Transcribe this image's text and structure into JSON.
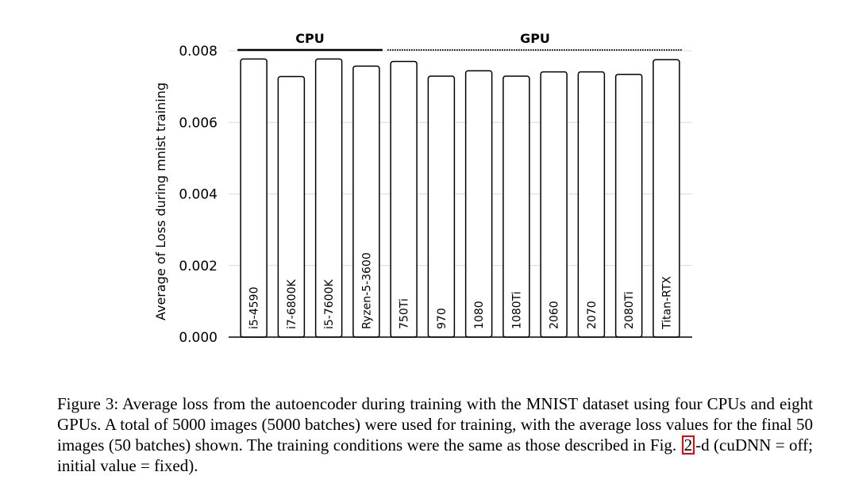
{
  "chart_data": {
    "type": "bar",
    "categories": [
      "i5-4590",
      "i7-6800K",
      "i5-7600K",
      "Ryzen-5-3600",
      "750Ti",
      "970",
      "1080",
      "1080Ti",
      "2060",
      "2070",
      "2080Ti",
      "Titan-RTX"
    ],
    "values": [
      0.00777,
      0.00728,
      0.00777,
      0.00757,
      0.0077,
      0.00729,
      0.00744,
      0.00729,
      0.00741,
      0.00741,
      0.00734,
      0.00775
    ],
    "ylabel": "Average of Loss during mnist training",
    "ylim": [
      0,
      0.008
    ],
    "yticks": [
      "0.000",
      "0.002",
      "0.004",
      "0.006",
      "0.008"
    ],
    "grid": true,
    "groups": [
      {
        "label": "CPU",
        "start": 0,
        "end": 3,
        "line": "solid"
      },
      {
        "label": "GPU",
        "start": 4,
        "end": 11,
        "line": "dotted"
      }
    ]
  },
  "caption": {
    "before_ref": "Figure 3: Average loss from the autoencoder during training with the MNIST dataset using four CPUs and eight GPUs. A total of 5000 images (5000 batches) were used for training, with the average loss values for the final 50 images (50 batches) shown. The training conditions were the same as those described in Fig. ",
    "ref": "2",
    "after_ref": "-d (cuDNN = off; initial value = fixed)."
  }
}
